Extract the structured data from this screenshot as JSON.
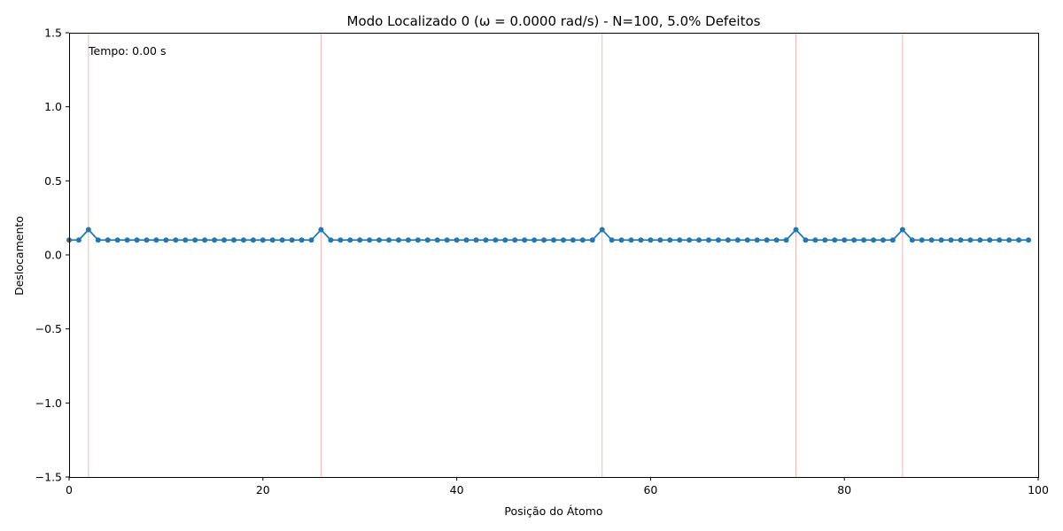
{
  "chart_data": {
    "type": "line",
    "title": "Modo Localizado 0 (ω = 0.0000 rad/s) - N=100, 5.0% Defeitos",
    "xlabel": "Posição do Átomo",
    "ylabel": "Deslocamento",
    "xlim": [
      0,
      100
    ],
    "ylim": [
      -1.5,
      1.5
    ],
    "xticks": [
      0,
      20,
      40,
      60,
      80,
      100
    ],
    "xtick_labels": [
      "0",
      "20",
      "40",
      "60",
      "80",
      "100"
    ],
    "yticks": [
      -1.5,
      -1.0,
      -0.5,
      0.0,
      0.5,
      1.0,
      1.5
    ],
    "ytick_labels": [
      "−1.5",
      "−1.0",
      "−0.5",
      "0.0",
      "0.5",
      "1.0",
      "1.5"
    ],
    "grid": false,
    "annotation": "Tempo: 0.00 s",
    "defect_positions": [
      2,
      26,
      55,
      75,
      86
    ],
    "defect_line_color": "#f4b8b0",
    "series": [
      {
        "color": "#1f77b4",
        "marker": "circle",
        "x_start": 0,
        "x_step": 1,
        "values": [
          0.1,
          0.1,
          0.17,
          0.1,
          0.1,
          0.1,
          0.1,
          0.1,
          0.1,
          0.1,
          0.1,
          0.1,
          0.1,
          0.1,
          0.1,
          0.1,
          0.1,
          0.1,
          0.1,
          0.1,
          0.1,
          0.1,
          0.1,
          0.1,
          0.1,
          0.1,
          0.17,
          0.1,
          0.1,
          0.1,
          0.1,
          0.1,
          0.1,
          0.1,
          0.1,
          0.1,
          0.1,
          0.1,
          0.1,
          0.1,
          0.1,
          0.1,
          0.1,
          0.1,
          0.1,
          0.1,
          0.1,
          0.1,
          0.1,
          0.1,
          0.1,
          0.1,
          0.1,
          0.1,
          0.1,
          0.17,
          0.1,
          0.1,
          0.1,
          0.1,
          0.1,
          0.1,
          0.1,
          0.1,
          0.1,
          0.1,
          0.1,
          0.1,
          0.1,
          0.1,
          0.1,
          0.1,
          0.1,
          0.1,
          0.1,
          0.17,
          0.1,
          0.1,
          0.1,
          0.1,
          0.1,
          0.1,
          0.1,
          0.1,
          0.1,
          0.1,
          0.17,
          0.1,
          0.1,
          0.1,
          0.1,
          0.1,
          0.1,
          0.1,
          0.1,
          0.1,
          0.1,
          0.1,
          0.1,
          0.1
        ]
      }
    ]
  }
}
